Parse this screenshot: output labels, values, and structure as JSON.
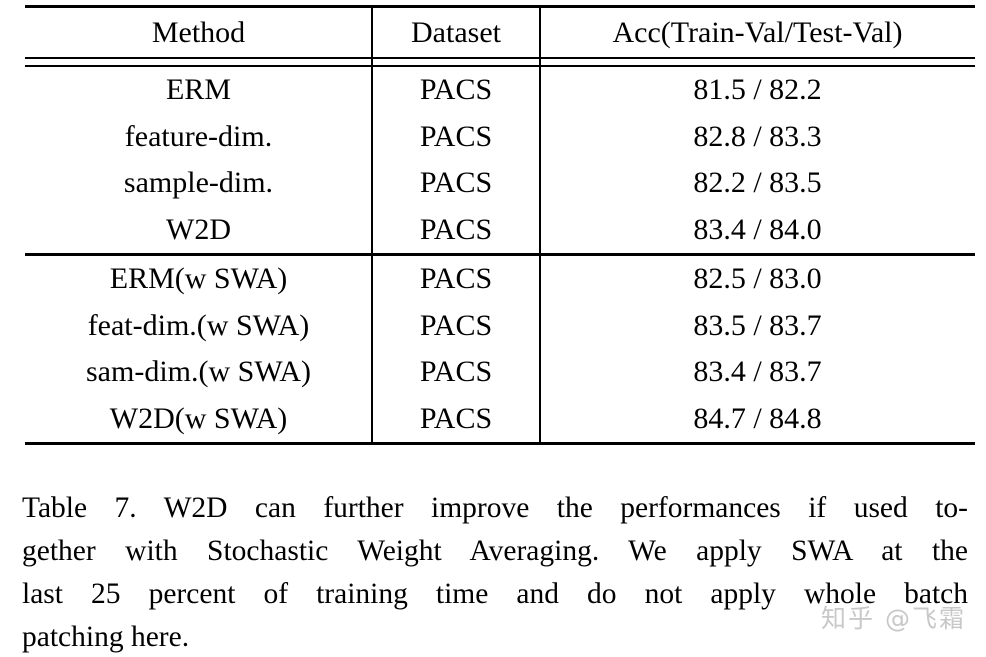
{
  "table": {
    "headers": [
      "Method",
      "Dataset",
      "Acc(Train-Val/Test-Val)"
    ],
    "rows": [
      {
        "method": "ERM",
        "dataset": "PACS",
        "acc": "81.5 / 82.2"
      },
      {
        "method": "feature-dim.",
        "dataset": "PACS",
        "acc": "82.8 / 83.3"
      },
      {
        "method": "sample-dim.",
        "dataset": "PACS",
        "acc": "82.2 / 83.5"
      },
      {
        "method": "W2D",
        "dataset": "PACS",
        "acc": "83.4 / 84.0"
      },
      {
        "method": "ERM(w SWA)",
        "dataset": "PACS",
        "acc": "82.5 / 83.0"
      },
      {
        "method": "feat-dim.(w SWA)",
        "dataset": "PACS",
        "acc": "83.5 / 83.7"
      },
      {
        "method": "sam-dim.(w SWA)",
        "dataset": "PACS",
        "acc": "83.4 / 83.7"
      },
      {
        "method": "W2D(w SWA)",
        "dataset": "PACS",
        "acc": "84.7 / 84.8"
      }
    ]
  },
  "caption": {
    "label": "Table 7.",
    "lines": [
      "Table 7.  W2D can further improve the performances if used to-",
      "gether with Stochastic Weight Averaging.  We apply SWA at the",
      "last 25 percent of training time and do not apply whole batch",
      "patching here."
    ]
  },
  "watermark": {
    "text": "知乎 @飞霜",
    "color": "#c8c8c8"
  },
  "colors": {
    "background": "#ffffff",
    "text": "#000000",
    "rule": "#000000"
  }
}
